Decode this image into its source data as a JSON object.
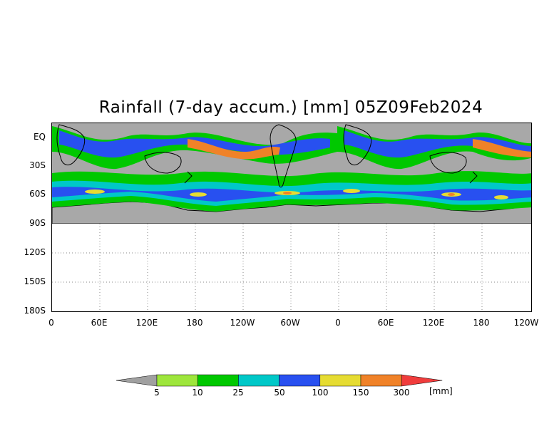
{
  "title": "Rainfall (7-day accum.) [mm] 05Z09Feb2024",
  "y_axis_labels": [
    "EQ",
    "30S",
    "60S",
    "90S",
    "120S",
    "150S",
    "180S"
  ],
  "x_axis_labels": [
    "0",
    "60E",
    "120E",
    "180",
    "120W",
    "60W",
    "0",
    "60E",
    "120E",
    "180",
    "120W"
  ],
  "colorbar": {
    "labels": [
      "5",
      "10",
      "25",
      "50",
      "100",
      "150",
      "300"
    ],
    "unit": "[mm]",
    "colors": [
      "#a0a0a0",
      "#9ee63c",
      "#00c800",
      "#00c8c8",
      "#2850f0",
      "#e6dc32",
      "#f08228",
      "#f03c3c"
    ]
  },
  "map": {
    "background_color": "#ffffff",
    "no_rain_color": "#a8a8a8",
    "coastline_color": "#000000"
  }
}
